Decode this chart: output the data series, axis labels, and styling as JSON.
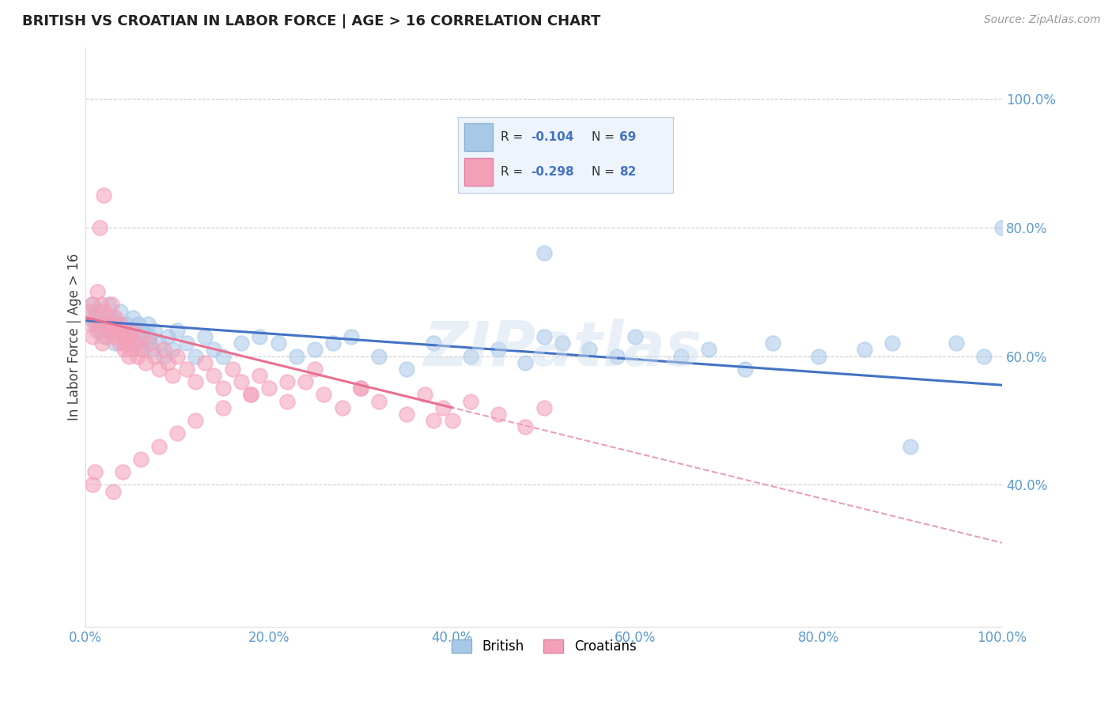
{
  "title": "BRITISH VS CROATIAN IN LABOR FORCE | AGE > 16 CORRELATION CHART",
  "source": "Source: ZipAtlas.com",
  "ylabel": "In Labor Force | Age > 16",
  "xlim": [
    0.0,
    1.0
  ],
  "ylim": [
    0.18,
    1.08
  ],
  "xticks": [
    0.0,
    0.2,
    0.4,
    0.6,
    0.8,
    1.0
  ],
  "yticks": [
    0.4,
    0.6,
    0.8,
    1.0
  ],
  "xtick_labels": [
    "0.0%",
    "20.0%",
    "40.0%",
    "60.0%",
    "80.0%",
    "100.0%"
  ],
  "ytick_labels": [
    "40.0%",
    "60.0%",
    "80.0%",
    "100.0%"
  ],
  "british_color": "#a8c8e8",
  "croatian_color": "#f4a0b8",
  "british_R": -0.104,
  "british_N": 69,
  "croatian_R": -0.298,
  "croatian_N": 82,
  "british_line_color": "#4472c4",
  "croatian_line_color": "#e87090",
  "dashed_line_color": "#e8a0b0",
  "watermark": "ZIPatlas",
  "british_scatter_x": [
    0.005,
    0.008,
    0.01,
    0.012,
    0.015,
    0.018,
    0.02,
    0.022,
    0.025,
    0.028,
    0.03,
    0.032,
    0.035,
    0.038,
    0.04,
    0.042,
    0.045,
    0.048,
    0.05,
    0.052,
    0.055,
    0.058,
    0.06,
    0.062,
    0.065,
    0.068,
    0.07,
    0.072,
    0.075,
    0.08,
    0.085,
    0.09,
    0.095,
    0.1,
    0.11,
    0.12,
    0.13,
    0.14,
    0.15,
    0.17,
    0.19,
    0.21,
    0.23,
    0.25,
    0.27,
    0.29,
    0.32,
    0.35,
    0.38,
    0.42,
    0.45,
    0.48,
    0.5,
    0.52,
    0.55,
    0.58,
    0.6,
    0.65,
    0.68,
    0.72,
    0.75,
    0.8,
    0.85,
    0.88,
    0.9,
    0.95,
    0.98,
    1.0,
    0.5
  ],
  "british_scatter_y": [
    0.66,
    0.68,
    0.65,
    0.67,
    0.64,
    0.66,
    0.63,
    0.65,
    0.68,
    0.64,
    0.66,
    0.62,
    0.65,
    0.67,
    0.64,
    0.62,
    0.65,
    0.63,
    0.64,
    0.66,
    0.63,
    0.65,
    0.61,
    0.64,
    0.62,
    0.65,
    0.63,
    0.61,
    0.64,
    0.62,
    0.6,
    0.63,
    0.61,
    0.64,
    0.62,
    0.6,
    0.63,
    0.61,
    0.6,
    0.62,
    0.63,
    0.62,
    0.6,
    0.61,
    0.62,
    0.63,
    0.6,
    0.58,
    0.62,
    0.6,
    0.61,
    0.59,
    0.63,
    0.62,
    0.61,
    0.6,
    0.63,
    0.6,
    0.61,
    0.58,
    0.62,
    0.6,
    0.61,
    0.62,
    0.46,
    0.62,
    0.6,
    0.8,
    0.76
  ],
  "croatian_scatter_x": [
    0.003,
    0.005,
    0.007,
    0.008,
    0.01,
    0.012,
    0.013,
    0.015,
    0.017,
    0.018,
    0.02,
    0.022,
    0.023,
    0.025,
    0.027,
    0.028,
    0.03,
    0.032,
    0.033,
    0.035,
    0.037,
    0.038,
    0.04,
    0.042,
    0.043,
    0.045,
    0.047,
    0.048,
    0.05,
    0.052,
    0.055,
    0.057,
    0.06,
    0.062,
    0.065,
    0.07,
    0.075,
    0.08,
    0.085,
    0.09,
    0.095,
    0.1,
    0.11,
    0.12,
    0.13,
    0.14,
    0.15,
    0.16,
    0.17,
    0.18,
    0.19,
    0.2,
    0.22,
    0.24,
    0.26,
    0.28,
    0.3,
    0.32,
    0.35,
    0.37,
    0.39,
    0.4,
    0.42,
    0.45,
    0.48,
    0.5,
    0.38,
    0.3,
    0.25,
    0.22,
    0.18,
    0.15,
    0.12,
    0.1,
    0.08,
    0.06,
    0.04,
    0.03,
    0.02,
    0.015,
    0.01,
    0.008
  ],
  "croatian_scatter_y": [
    0.67,
    0.65,
    0.68,
    0.63,
    0.66,
    0.64,
    0.7,
    0.65,
    0.68,
    0.62,
    0.67,
    0.65,
    0.63,
    0.66,
    0.64,
    0.68,
    0.65,
    0.63,
    0.66,
    0.64,
    0.62,
    0.65,
    0.63,
    0.61,
    0.64,
    0.62,
    0.6,
    0.63,
    0.61,
    0.64,
    0.62,
    0.6,
    0.63,
    0.61,
    0.59,
    0.62,
    0.6,
    0.58,
    0.61,
    0.59,
    0.57,
    0.6,
    0.58,
    0.56,
    0.59,
    0.57,
    0.55,
    0.58,
    0.56,
    0.54,
    0.57,
    0.55,
    0.53,
    0.56,
    0.54,
    0.52,
    0.55,
    0.53,
    0.51,
    0.54,
    0.52,
    0.5,
    0.53,
    0.51,
    0.49,
    0.52,
    0.5,
    0.55,
    0.58,
    0.56,
    0.54,
    0.52,
    0.5,
    0.48,
    0.46,
    0.44,
    0.42,
    0.39,
    0.85,
    0.8,
    0.42,
    0.4
  ]
}
